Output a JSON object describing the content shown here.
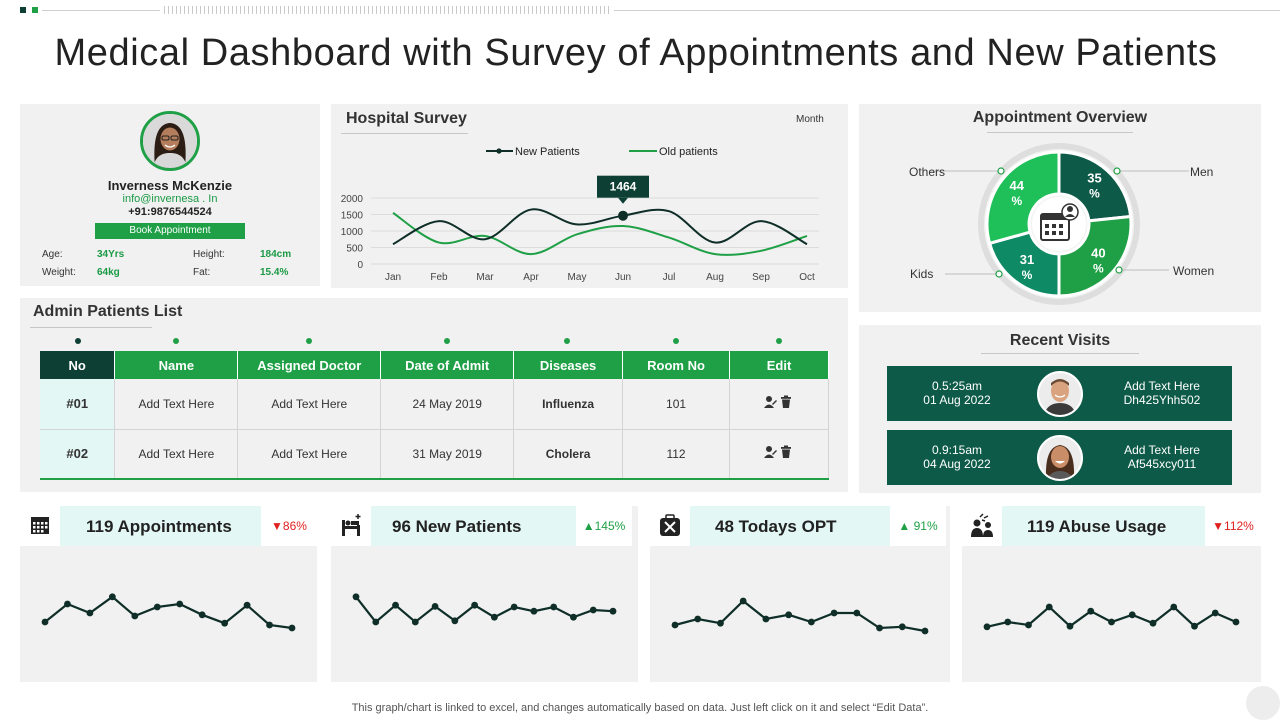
{
  "page": {
    "title": "Medical Dashboard with Survey of Appointments and New Patients",
    "footer_note": "This graph/chart is linked to excel, and changes automatically based on data. Just left click on it and select “Edit Data”.",
    "colors": {
      "green": "#1fa046",
      "dark_green": "#0d3f34",
      "teal": "#0d5a48",
      "red": "#e01f1f",
      "panel": "#f1f1f1"
    }
  },
  "profile": {
    "name": "Inverness McKenzie",
    "email": "info@invernesa . In",
    "phone": "+91:9876544524",
    "book_label": "Book Appointment",
    "age_label": "Age:",
    "age": "34Yrs",
    "height_label": "Height:",
    "height": "184cm",
    "weight_label": "Weight:",
    "weight": "64kg",
    "fat_label": "Fat:",
    "fat": "15.4%"
  },
  "survey": {
    "title": "Hospital Survey",
    "period": "Month",
    "highlight_value": "1464"
  },
  "appointment": {
    "title": "Appointment Overview",
    "labels": {
      "others": "Others",
      "men": "Men",
      "kids": "Kids",
      "women": "Women"
    },
    "center_icon": "calendar-user-icon"
  },
  "admin": {
    "title": "Admin Patients List",
    "headers": [
      "No",
      "Name",
      "Assigned  Doctor",
      "Date of Admit",
      "Diseases",
      "Room No",
      "Edit"
    ],
    "rows": [
      {
        "no": "#01",
        "name": "Add Text Here",
        "doctor": "Add Text Here",
        "date": "24 May 2019",
        "disease": "Influenza",
        "room": "101"
      },
      {
        "no": "#02",
        "name": "Add Text Here",
        "doctor": "Add Text Here",
        "date": "31 May 2019",
        "disease": "Cholera",
        "room": "112"
      }
    ]
  },
  "recent": {
    "title": "Recent Visits",
    "visits": [
      {
        "time": "0.5:25am",
        "date": "01 Aug 2022",
        "text": "Add Text Here",
        "code": "Dh425Yhh502"
      },
      {
        "time": "0.9:15am",
        "date": "04 Aug 2022",
        "text": "Add Text Here",
        "code": "Af545xcy011"
      }
    ]
  },
  "kpis": [
    {
      "title": "119 Appointments",
      "change": "86%",
      "direction": "down",
      "icon": "calendar-icon"
    },
    {
      "title": "96 New Patients",
      "change": "145%",
      "direction": "up",
      "icon": "hospital-bed-icon"
    },
    {
      "title": "48 Todays OPT",
      "change": "91%",
      "direction": "up",
      "icon": "medical-kit-icon"
    },
    {
      "title": "119 Abuse Usage",
      "change": "112%",
      "direction": "down",
      "icon": "people-icon"
    }
  ],
  "chart_data": [
    {
      "type": "line",
      "title": "Hospital Survey",
      "categories": [
        "Jan",
        "Feb",
        "Mar",
        "Apr",
        "May",
        "Jun",
        "Jul",
        "Aug",
        "Sep",
        "Oct"
      ],
      "ylim": [
        0,
        2000
      ],
      "yticks": [
        "0",
        "500",
        "1000",
        "1500",
        "2000"
      ],
      "series": [
        {
          "name": "New Patients",
          "values": [
            600,
            1300,
            750,
            1650,
            1200,
            1464,
            1600,
            650,
            1300,
            600
          ]
        },
        {
          "name": "Old patients",
          "values": [
            1550,
            650,
            850,
            300,
            900,
            1150,
            800,
            300,
            400,
            850
          ]
        }
      ],
      "annotation": {
        "category": "Jun",
        "value": 1464
      },
      "legend": "top"
    },
    {
      "type": "pie",
      "title": "Appointment Overview",
      "labels": [
        "Men",
        "Women",
        "Kids",
        "Others"
      ],
      "values": [
        35,
        40,
        31,
        44
      ],
      "display": [
        "35 %",
        "40 %",
        "31 %",
        "44 %"
      ]
    },
    {
      "type": "line",
      "title": "119 Appointments",
      "values": [
        40,
        70,
        55,
        82,
        50,
        65,
        70,
        52,
        38,
        68,
        35,
        30
      ]
    },
    {
      "type": "line",
      "title": "96 New Patients",
      "values": [
        82,
        40,
        68,
        40,
        66,
        42,
        68,
        48,
        65,
        58,
        65,
        48,
        60,
        58
      ]
    },
    {
      "type": "line",
      "title": "48 Todays OPT",
      "values": [
        35,
        45,
        38,
        75,
        45,
        52,
        40,
        55,
        55,
        30,
        32,
        25
      ]
    },
    {
      "type": "line",
      "title": "119 Abuse Usage",
      "values": [
        32,
        40,
        35,
        65,
        33,
        58,
        40,
        52,
        38,
        65,
        33,
        55,
        40
      ]
    }
  ]
}
